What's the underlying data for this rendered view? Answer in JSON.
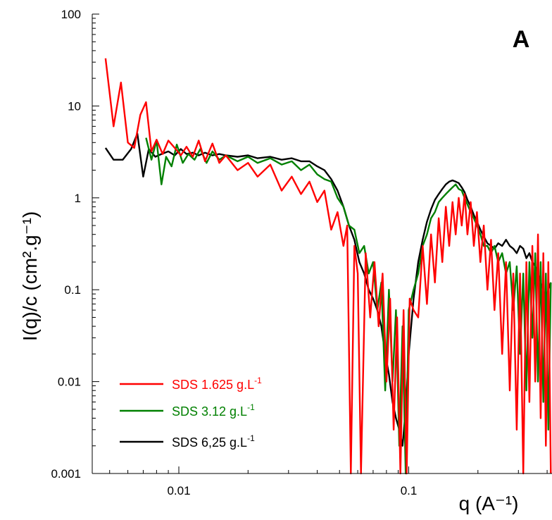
{
  "chart_data": {
    "type": "line",
    "panel_label": "A",
    "ylabel": "I(q)/c (cm².g⁻¹)",
    "xlabel": "q (A⁻¹)",
    "x_scale": "log",
    "y_scale": "log",
    "xlim": [
      0.0042,
      0.42
    ],
    "ylim": [
      0.001,
      100
    ],
    "x_ticks": [
      {
        "value": 0.01,
        "label": "0.01"
      },
      {
        "value": 0.1,
        "label": "0.1"
      }
    ],
    "y_ticks": [
      {
        "value": 100,
        "label": "100"
      },
      {
        "value": 10,
        "label": "10"
      },
      {
        "value": 1,
        "label": "1"
      },
      {
        "value": 0.1,
        "label": "0.1"
      },
      {
        "value": 0.01,
        "label": "0.01"
      },
      {
        "value": 0.001,
        "label": "0.001"
      }
    ],
    "grid": false,
    "legend_position": "bottom-left",
    "series": [
      {
        "name": "SDS 1.625 g.L⁻¹",
        "legend": {
          "base": "SDS 1.625 g.L",
          "sup": "-1"
        },
        "color": "#ff0000",
        "x": [
          0.0048,
          0.0052,
          0.0056,
          0.006,
          0.0064,
          0.0068,
          0.0072,
          0.0076,
          0.008,
          0.0085,
          0.009,
          0.0096,
          0.0102,
          0.0108,
          0.0115,
          0.0122,
          0.013,
          0.014,
          0.015,
          0.016,
          0.018,
          0.02,
          0.022,
          0.025,
          0.028,
          0.031,
          0.034,
          0.037,
          0.04,
          0.043,
          0.046,
          0.049,
          0.052,
          0.054,
          0.056,
          0.058,
          0.06,
          0.062,
          0.065,
          0.068,
          0.071,
          0.074,
          0.077,
          0.08,
          0.083,
          0.086,
          0.089,
          0.092,
          0.095,
          0.098,
          0.101,
          0.105,
          0.11,
          0.115,
          0.12,
          0.125,
          0.13,
          0.135,
          0.14,
          0.145,
          0.15,
          0.155,
          0.16,
          0.165,
          0.17,
          0.175,
          0.18,
          0.186,
          0.192,
          0.198,
          0.205,
          0.212,
          0.22,
          0.228,
          0.236,
          0.245,
          0.255,
          0.265,
          0.275,
          0.285,
          0.295,
          0.305,
          0.315,
          0.325,
          0.335,
          0.345,
          0.355,
          0.365,
          0.375,
          0.385,
          0.395,
          0.405,
          0.415
        ],
        "y": [
          33,
          6,
          18,
          4,
          3.5,
          8,
          11,
          3.2,
          4.3,
          3.0,
          4.2,
          3.5,
          2.9,
          3.6,
          2.8,
          4.2,
          2.5,
          3.9,
          2.4,
          2.9,
          2.0,
          2.4,
          1.7,
          2.3,
          1.2,
          1.7,
          1.1,
          1.5,
          0.9,
          1.2,
          0.45,
          0.7,
          0.3,
          0.5,
          0.001,
          0.3,
          0.15,
          0.001,
          0.25,
          0.05,
          0.2,
          0.04,
          0.15,
          0.01,
          0.08,
          0.003,
          0.05,
          0.001,
          0.06,
          0.001,
          0.08,
          0.06,
          0.05,
          0.3,
          0.07,
          0.4,
          0.12,
          0.6,
          0.2,
          0.8,
          0.3,
          0.9,
          0.4,
          1.0,
          0.5,
          1.1,
          0.4,
          0.9,
          0.3,
          0.7,
          0.2,
          0.5,
          0.1,
          0.35,
          0.06,
          0.25,
          0.02,
          0.2,
          0.008,
          0.15,
          0.003,
          0.15,
          0.001,
          0.2,
          0.006,
          0.3,
          0.01,
          0.4,
          0.004,
          0.25,
          0.002,
          0.2,
          0.001
        ]
      },
      {
        "name": "SDS 3.12 g.L⁻¹",
        "legend": {
          "base": "SDS 3.12 g.L",
          "sup": "-1"
        },
        "color": "#008000",
        "x": [
          0.0072,
          0.0076,
          0.008,
          0.0084,
          0.0088,
          0.0093,
          0.0098,
          0.0104,
          0.011,
          0.0117,
          0.0124,
          0.0132,
          0.014,
          0.015,
          0.016,
          0.018,
          0.02,
          0.022,
          0.025,
          0.028,
          0.031,
          0.034,
          0.037,
          0.04,
          0.043,
          0.046,
          0.049,
          0.052,
          0.055,
          0.058,
          0.061,
          0.064,
          0.067,
          0.07,
          0.073,
          0.076,
          0.079,
          0.082,
          0.085,
          0.088,
          0.091,
          0.094,
          0.097,
          0.1,
          0.105,
          0.11,
          0.115,
          0.12,
          0.125,
          0.13,
          0.135,
          0.14,
          0.145,
          0.15,
          0.155,
          0.16,
          0.165,
          0.17,
          0.175,
          0.18,
          0.186,
          0.192,
          0.198,
          0.205,
          0.212,
          0.22,
          0.228,
          0.236,
          0.245,
          0.255,
          0.265,
          0.275,
          0.285,
          0.295,
          0.305,
          0.315,
          0.325,
          0.335,
          0.345,
          0.355,
          0.365,
          0.375,
          0.385,
          0.395,
          0.405,
          0.415
        ],
        "y": [
          4.5,
          2.6,
          4.2,
          1.4,
          2.8,
          2.2,
          3.8,
          2.4,
          3.0,
          2.6,
          3.4,
          2.4,
          3.2,
          2.6,
          2.9,
          2.5,
          2.8,
          2.4,
          2.7,
          2.3,
          2.5,
          2.0,
          2.3,
          1.8,
          1.6,
          1.5,
          1.0,
          0.8,
          0.5,
          0.45,
          0.25,
          0.3,
          0.15,
          0.2,
          0.06,
          0.12,
          0.008,
          0.1,
          0.01,
          0.06,
          0.002,
          0.04,
          0.001,
          0.06,
          0.1,
          0.15,
          0.3,
          0.4,
          0.6,
          0.7,
          0.9,
          1.0,
          1.1,
          1.2,
          1.3,
          1.4,
          1.25,
          1.2,
          1.0,
          0.85,
          0.7,
          0.6,
          0.5,
          0.4,
          0.3,
          0.3,
          0.25,
          0.3,
          0.2,
          0.25,
          0.15,
          0.2,
          0.06,
          0.18,
          0.02,
          0.15,
          0.008,
          0.2,
          0.03,
          0.25,
          0.01,
          0.2,
          0.006,
          0.15,
          0.003,
          0.12
        ]
      },
      {
        "name": "SDS 6,25 g.L⁻¹",
        "legend": {
          "base": "SDS 6,25 g.L",
          "sup": "-1"
        },
        "color": "#000000",
        "x": [
          0.0048,
          0.0052,
          0.0057,
          0.0062,
          0.0066,
          0.007,
          0.0074,
          0.0079,
          0.0084,
          0.009,
          0.0096,
          0.0102,
          0.0108,
          0.0115,
          0.0122,
          0.013,
          0.014,
          0.015,
          0.016,
          0.018,
          0.02,
          0.022,
          0.025,
          0.028,
          0.031,
          0.034,
          0.037,
          0.04,
          0.043,
          0.046,
          0.049,
          0.052,
          0.055,
          0.058,
          0.061,
          0.064,
          0.067,
          0.07,
          0.073,
          0.076,
          0.079,
          0.082,
          0.085,
          0.088,
          0.091,
          0.094,
          0.097,
          0.1,
          0.105,
          0.11,
          0.115,
          0.12,
          0.125,
          0.13,
          0.135,
          0.14,
          0.145,
          0.15,
          0.155,
          0.16,
          0.165,
          0.17,
          0.175,
          0.18,
          0.186,
          0.192,
          0.198,
          0.205,
          0.212,
          0.22,
          0.228,
          0.236,
          0.245,
          0.255,
          0.265,
          0.275,
          0.285,
          0.295,
          0.305,
          0.315,
          0.325,
          0.335,
          0.345,
          0.355,
          0.365,
          0.375,
          0.385,
          0.395,
          0.405,
          0.415
        ],
        "y": [
          3.5,
          2.6,
          2.6,
          3.4,
          5.0,
          1.7,
          3.4,
          2.8,
          3.0,
          3.2,
          2.9,
          3.4,
          3.0,
          3.1,
          2.9,
          3.1,
          2.9,
          3.0,
          2.9,
          2.8,
          2.9,
          2.7,
          2.8,
          2.6,
          2.7,
          2.5,
          2.5,
          2.2,
          2.0,
          1.6,
          1.2,
          0.8,
          0.5,
          0.35,
          0.2,
          0.15,
          0.1,
          0.08,
          0.06,
          0.04,
          0.02,
          0.012,
          0.006,
          0.004,
          0.003,
          0.002,
          0.005,
          0.02,
          0.08,
          0.2,
          0.35,
          0.55,
          0.75,
          0.95,
          1.1,
          1.25,
          1.4,
          1.5,
          1.55,
          1.5,
          1.45,
          1.3,
          1.15,
          0.95,
          0.8,
          0.65,
          0.55,
          0.45,
          0.38,
          0.32,
          0.3,
          0.28,
          0.32,
          0.3,
          0.35,
          0.3,
          0.28,
          0.25,
          0.3,
          0.28,
          0.22,
          0.25,
          0.2,
          0.18,
          0.15,
          0.12,
          0.1,
          0.08,
          0.1,
          0.12
        ]
      }
    ]
  }
}
